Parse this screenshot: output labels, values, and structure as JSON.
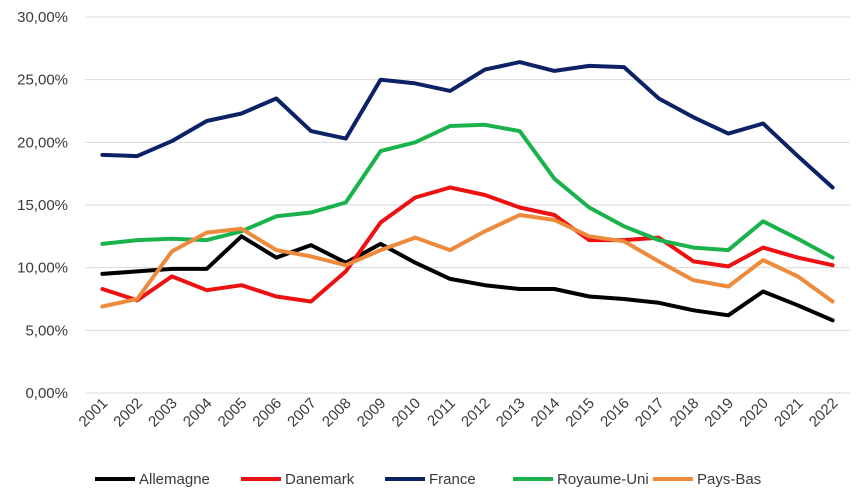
{
  "chart_data": {
    "type": "line",
    "title": "",
    "xlabel": "",
    "ylabel": "",
    "categories": [
      "2001",
      "2002",
      "2003",
      "2004",
      "2005",
      "2006",
      "2007",
      "2008",
      "2009",
      "2010",
      "2011",
      "2012",
      "2013",
      "2014",
      "2015",
      "2016",
      "2017",
      "2018",
      "2019",
      "2020",
      "2021",
      "2022"
    ],
    "ylim": [
      0,
      30
    ],
    "y_ticks": [
      0,
      5,
      10,
      15,
      20,
      25,
      30
    ],
    "y_tick_labels": [
      "0,00%",
      "5,00%",
      "10,00%",
      "15,00%",
      "20,00%",
      "25,00%",
      "30,00%"
    ],
    "grid": true,
    "legend_position": "bottom",
    "series": [
      {
        "name": "Allemagne",
        "color": "#000000",
        "values": [
          9.5,
          9.7,
          9.9,
          9.9,
          12.5,
          10.8,
          11.8,
          10.4,
          11.9,
          10.4,
          9.1,
          8.6,
          8.3,
          8.3,
          7.7,
          7.5,
          7.2,
          6.6,
          6.2,
          8.1,
          7.0,
          5.8
        ]
      },
      {
        "name": "Danemark",
        "color": "#ee1111",
        "values": [
          8.3,
          7.4,
          9.3,
          8.2,
          8.6,
          7.7,
          7.3,
          9.7,
          13.6,
          15.6,
          16.4,
          15.8,
          14.8,
          14.2,
          12.2,
          12.2,
          12.4,
          10.5,
          10.1,
          11.6,
          10.8,
          10.2
        ]
      },
      {
        "name": "France",
        "color": "#0d2264",
        "values": [
          19.0,
          18.9,
          20.1,
          21.7,
          22.3,
          23.5,
          20.9,
          20.3,
          25.0,
          24.7,
          24.1,
          25.8,
          26.4,
          25.7,
          26.1,
          26.0,
          23.5,
          22.0,
          20.7,
          21.5,
          18.9,
          16.4
        ]
      },
      {
        "name": "Royaume-Uni",
        "color": "#1ab34b",
        "values": [
          11.9,
          12.2,
          12.3,
          12.2,
          12.9,
          14.1,
          14.4,
          15.2,
          19.3,
          20.0,
          21.3,
          21.4,
          20.9,
          17.1,
          14.8,
          13.3,
          12.2,
          11.6,
          11.4,
          13.7,
          12.3,
          10.8
        ]
      },
      {
        "name": "Pays-Bas",
        "color": "#ee8a3c",
        "values": [
          6.9,
          7.5,
          11.3,
          12.8,
          13.1,
          11.4,
          10.9,
          10.2,
          11.4,
          12.4,
          11.4,
          12.9,
          14.2,
          13.8,
          12.5,
          12.1,
          10.5,
          9.0,
          8.5,
          10.6,
          9.3,
          7.3
        ]
      }
    ]
  }
}
